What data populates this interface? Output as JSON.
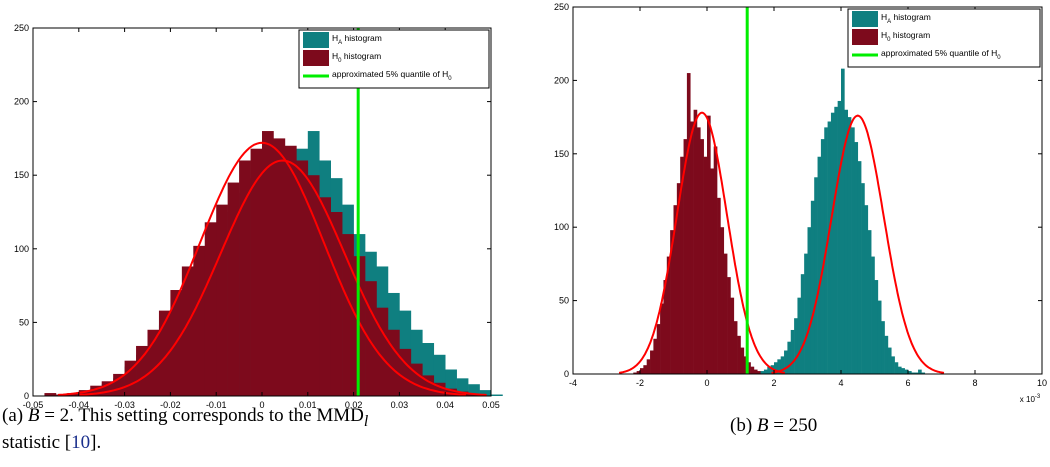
{
  "colors": {
    "h_a": "#0f7f80",
    "h_0": "#7d0a1c",
    "fit": "#ff0000",
    "quantile": "#00ee00",
    "axis": "#000000"
  },
  "captions": {
    "a": {
      "prefix": "(a) ",
      "lhs": "B",
      "eq": " = 2.  This setting corresponds to the ",
      "stat": "MMD",
      "sub": "l",
      "line2_pre": "statistic [",
      "ref": "10",
      "line2_post": "]."
    },
    "b": {
      "prefix": "(b) ",
      "lhs": "B",
      "eq": " = 250"
    }
  },
  "chart_data": [
    {
      "type": "histogram",
      "panel": "a",
      "xlim": [
        -0.05,
        0.05
      ],
      "ylim": [
        0,
        250
      ],
      "xticks": [
        -0.05,
        -0.04,
        -0.03,
        -0.02,
        -0.01,
        0,
        0.01,
        0.02,
        0.03,
        0.04,
        0.05
      ],
      "xtick_labels": [
        "-0.05",
        "-0.04",
        "-0.03",
        "-0.02",
        "-0.01",
        "0",
        "0.01",
        "0.02",
        "0.03",
        "0.04",
        "0.05"
      ],
      "yticks": [
        0,
        50,
        100,
        150,
        200,
        250
      ],
      "ytick_labels": [
        "0",
        "50",
        "100",
        "150",
        "200",
        "250"
      ],
      "x_multiplier": "",
      "legend_position": "top-right",
      "legend": [
        {
          "base": "H",
          "sub": "A",
          "text": " histogram",
          "kind": "patch",
          "color_key": "h_a"
        },
        {
          "base": "H",
          "sub": "0",
          "text": " histogram",
          "kind": "patch",
          "color_key": "h_0"
        },
        {
          "base": "approximated 5% quantile of H",
          "sub": "0",
          "text": "",
          "kind": "line",
          "color_key": "quantile"
        }
      ],
      "series": [
        {
          "name": "H_A histogram",
          "bin_start": -0.0475,
          "bin_width": 0.0025,
          "values": [
            1,
            0,
            1,
            3,
            5,
            8,
            12,
            20,
            28,
            36,
            48,
            60,
            72,
            88,
            100,
            112,
            125,
            138,
            148,
            155,
            158,
            162,
            168,
            180,
            160,
            148,
            130,
            110,
            98,
            88,
            70,
            58,
            45,
            36,
            28,
            18,
            12,
            8,
            4,
            1
          ]
        },
        {
          "name": "H_0 histogram",
          "bin_start": -0.0475,
          "bin_width": 0.0025,
          "values": [
            2,
            1,
            2,
            4,
            7,
            10,
            15,
            24,
            34,
            45,
            58,
            72,
            88,
            102,
            118,
            130,
            145,
            160,
            168,
            180,
            175,
            170,
            160,
            150,
            135,
            125,
            110,
            95,
            78,
            60,
            45,
            32,
            22,
            14,
            9,
            5,
            3,
            1,
            0,
            0
          ]
        }
      ],
      "fits": [
        {
          "mean": 0.0,
          "sd": 0.0135,
          "peak": 172
        },
        {
          "mean": 0.0045,
          "sd": 0.0135,
          "peak": 160
        }
      ],
      "quantile_x": 0.021
    },
    {
      "type": "histogram",
      "panel": "b",
      "xlim": [
        -4,
        10
      ],
      "ylim": [
        0,
        250
      ],
      "xticks": [
        -4,
        -2,
        0,
        2,
        4,
        6,
        8,
        10
      ],
      "xtick_labels": [
        "-4",
        "-2",
        "0",
        "2",
        "4",
        "6",
        "8",
        "10"
      ],
      "yticks": [
        0,
        50,
        100,
        150,
        200,
        250
      ],
      "ytick_labels": [
        "0",
        "50",
        "100",
        "150",
        "200",
        "250"
      ],
      "x_multiplier": "x 10",
      "x_multiplier_exp": "-3",
      "legend_position": "top-right",
      "legend": [
        {
          "base": "H",
          "sub": "A",
          "text": " histogram",
          "kind": "patch",
          "color_key": "h_a"
        },
        {
          "base": "H",
          "sub": "0",
          "text": " histogram",
          "kind": "patch",
          "color_key": "h_0"
        },
        {
          "base": "approximated 5% quantile of H",
          "sub": "0",
          "text": "",
          "kind": "line",
          "color_key": "quantile"
        }
      ],
      "series": [
        {
          "name": "H_0 histogram",
          "bin_start": -2.2,
          "bin_width": 0.1,
          "values": [
            1,
            2,
            4,
            6,
            10,
            16,
            24,
            34,
            48,
            64,
            80,
            98,
            115,
            130,
            148,
            160,
            205,
            172,
            180,
            168,
            160,
            148,
            176,
            140,
            155,
            120,
            100,
            82,
            66,
            52,
            36,
            26,
            18,
            12,
            8,
            5,
            3,
            2,
            1,
            1,
            0
          ]
        },
        {
          "name": "H_A histogram",
          "bin_start": 1.6,
          "bin_width": 0.1,
          "values": [
            2,
            3,
            5,
            6,
            8,
            10,
            12,
            16,
            22,
            30,
            38,
            52,
            68,
            82,
            100,
            118,
            134,
            148,
            160,
            168,
            172,
            178,
            182,
            186,
            208,
            180,
            175,
            168,
            158,
            145,
            130,
            115,
            98,
            80,
            64,
            50,
            36,
            26,
            18,
            12,
            8,
            5,
            4,
            3,
            2,
            1,
            1,
            3,
            1,
            0
          ]
        }
      ],
      "fits": [
        {
          "mean": -0.15,
          "sd": 0.75,
          "peak": 178
        },
        {
          "mean": 4.5,
          "sd": 0.78,
          "peak": 176
        }
      ],
      "quantile_x": 1.2
    }
  ]
}
